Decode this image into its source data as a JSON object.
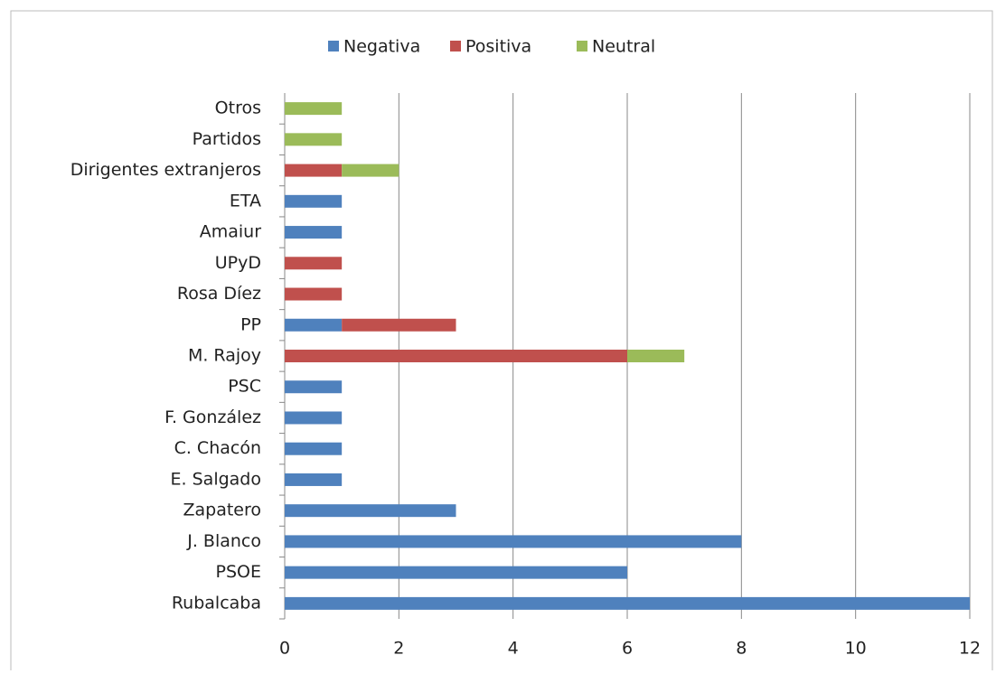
{
  "chart_data": {
    "type": "stacked-barh",
    "categories": [
      "Rubalcaba",
      "PSOE",
      "J. Blanco",
      "Zapatero",
      "E. Salgado",
      "C. Chacón",
      "F. González",
      "PSC",
      "M. Rajoy",
      "PP",
      "Rosa Díez",
      "UPyD",
      "Amaiur",
      "ETA",
      "Dirigentes extranjeros",
      "Partidos",
      "Otros"
    ],
    "series": [
      {
        "name": "Negativa",
        "color": "#4f81bd",
        "values": [
          12,
          6,
          8,
          3,
          1,
          1,
          1,
          1,
          0,
          1,
          0,
          0,
          1,
          1,
          0,
          0,
          0
        ]
      },
      {
        "name": "Positiva",
        "color": "#c0504d",
        "values": [
          0,
          0,
          0,
          0,
          0,
          0,
          0,
          0,
          6,
          2,
          1,
          1,
          0,
          0,
          1,
          0,
          0
        ]
      },
      {
        "name": "Neutral",
        "color": "#9bbb59",
        "values": [
          0,
          0,
          0,
          0,
          0,
          0,
          0,
          0,
          1,
          0,
          0,
          0,
          0,
          0,
          1,
          1,
          1
        ]
      }
    ],
    "xlim": [
      0,
      12
    ],
    "xticks": [
      0,
      2,
      4,
      6,
      8,
      10,
      12
    ],
    "grid": true,
    "legend": "top"
  }
}
